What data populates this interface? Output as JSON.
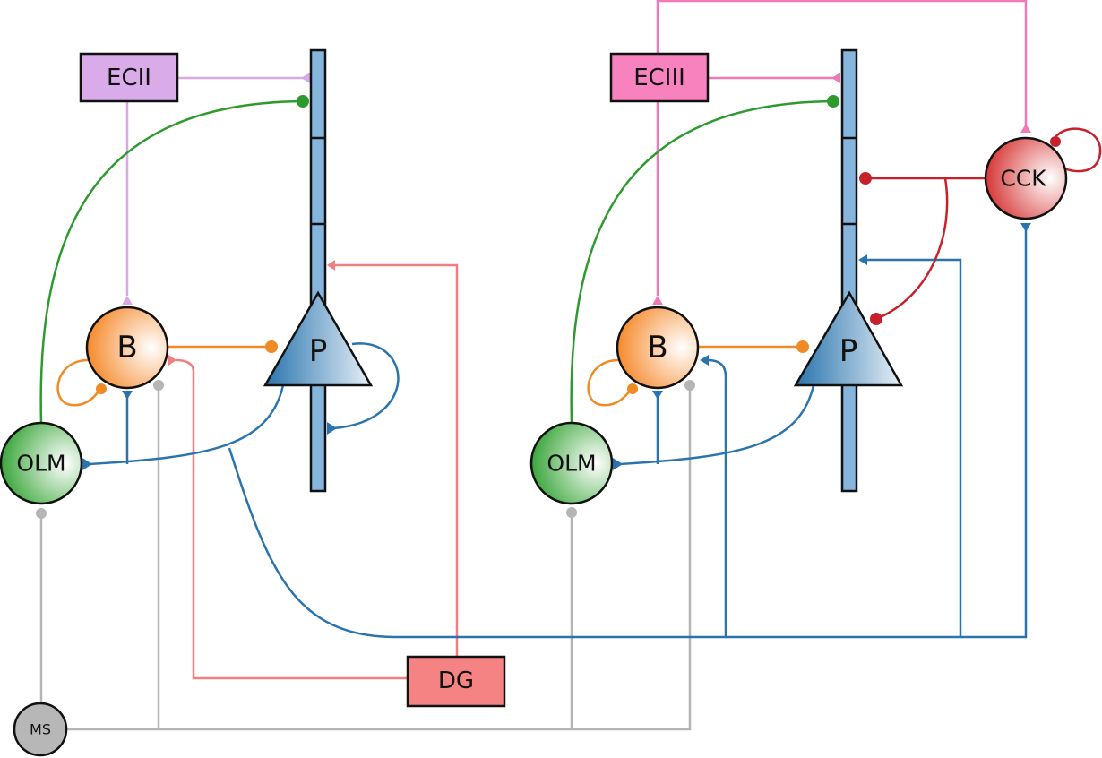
{
  "nodes": {
    "ecii": "ECII",
    "eciii": "ECIII",
    "dg": "DG",
    "ms": "MS",
    "cck": "CCK",
    "b_left": "B",
    "b_right": "B",
    "p_left": "P",
    "p_right": "P",
    "olm_left": "OLM",
    "olm_right": "OLM"
  },
  "colors": {
    "olm": "#2e9a2e",
    "basket": "#f08a24",
    "pyramidal": "#2a74ad",
    "cck": "#c8202a",
    "ecii": "#d9a8e6",
    "eciii": "#f07ab5",
    "dg": "#f08080",
    "ms": "#b5b5b5"
  }
}
